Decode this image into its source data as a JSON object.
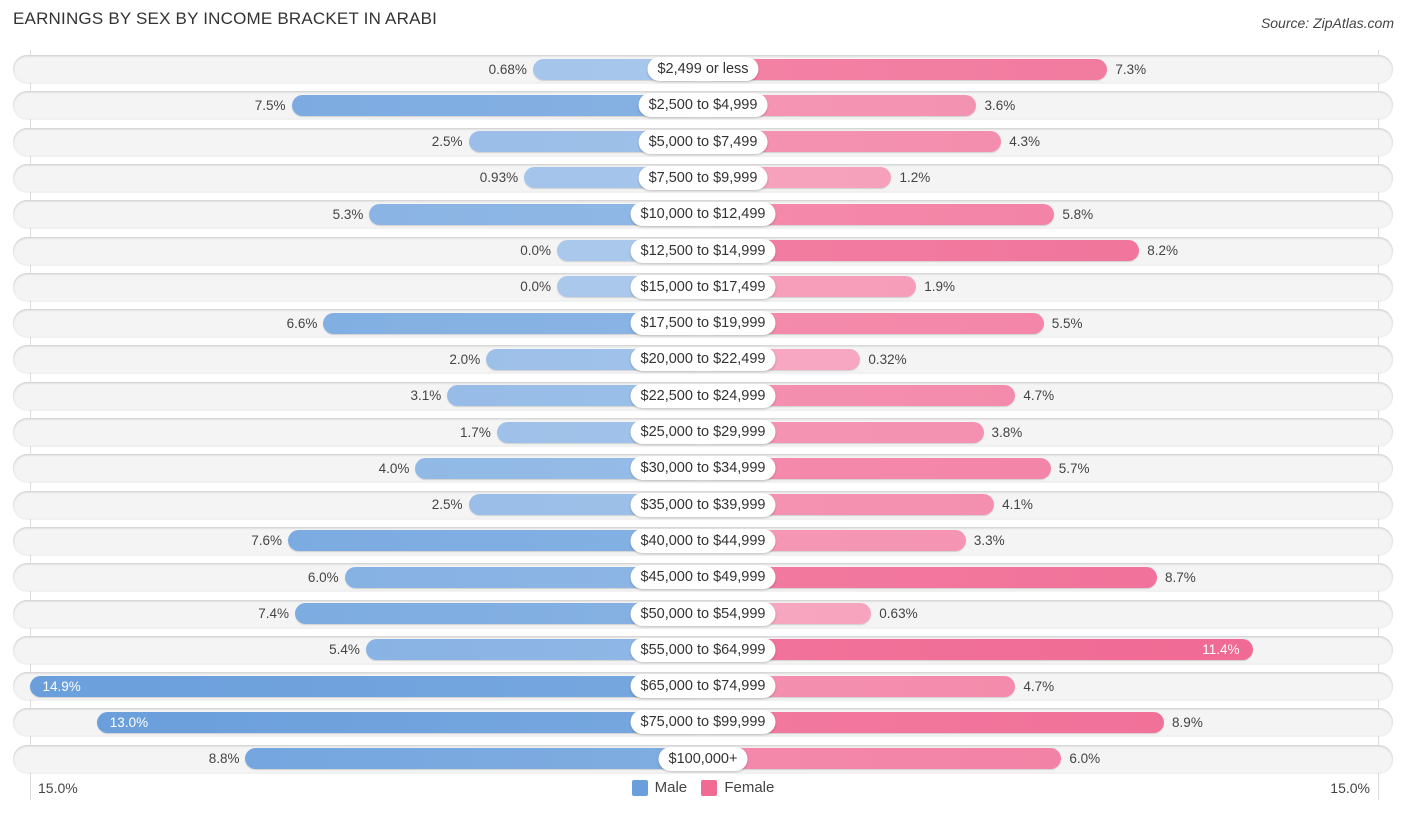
{
  "title": "EARNINGS BY SEX BY INCOME BRACKET IN ARABI",
  "source": "Source: ZipAtlas.com",
  "colors": {
    "male": "#6a9fdc",
    "male_light": "#a9c8ec",
    "female": "#f06a94",
    "female_light": "#f7a9c2"
  },
  "chart_data": {
    "type": "bar",
    "orientation": "horizontal-diverging",
    "title": "EARNINGS BY SEX BY INCOME BRACKET IN ARABI",
    "xlabel": "",
    "ylabel": "",
    "xlim": [
      -15.0,
      15.0
    ],
    "tick_labels": {
      "left": "15.0%",
      "right": "15.0%"
    },
    "legend": {
      "position": "bottom-center",
      "entries": [
        "Male",
        "Female"
      ]
    },
    "categories": [
      "$2,499 or less",
      "$2,500 to $4,999",
      "$5,000 to $7,499",
      "$7,500 to $9,999",
      "$10,000 to $12,499",
      "$12,500 to $14,999",
      "$15,000 to $17,499",
      "$17,500 to $19,999",
      "$20,000 to $22,499",
      "$22,500 to $24,999",
      "$25,000 to $29,999",
      "$30,000 to $34,999",
      "$35,000 to $39,999",
      "$40,000 to $44,999",
      "$45,000 to $49,999",
      "$50,000 to $54,999",
      "$55,000 to $64,999",
      "$65,000 to $74,999",
      "$75,000 to $99,999",
      "$100,000+"
    ],
    "series": [
      {
        "name": "Male",
        "values": [
          0.68,
          7.5,
          2.5,
          0.93,
          5.3,
          0.0,
          0.0,
          6.6,
          2.0,
          3.1,
          1.7,
          4.0,
          2.5,
          7.6,
          6.0,
          7.4,
          5.4,
          14.9,
          13.0,
          8.8
        ],
        "labels": [
          "0.68%",
          "7.5%",
          "2.5%",
          "0.93%",
          "5.3%",
          "0.0%",
          "0.0%",
          "6.6%",
          "2.0%",
          "3.1%",
          "1.7%",
          "4.0%",
          "2.5%",
          "7.6%",
          "6.0%",
          "7.4%",
          "5.4%",
          "14.9%",
          "13.0%",
          "8.8%"
        ]
      },
      {
        "name": "Female",
        "values": [
          7.3,
          3.6,
          4.3,
          1.2,
          5.8,
          8.2,
          1.9,
          5.5,
          0.32,
          4.7,
          3.8,
          5.7,
          4.1,
          3.3,
          8.7,
          0.63,
          11.4,
          4.7,
          8.9,
          6.0
        ],
        "labels": [
          "7.3%",
          "3.6%",
          "4.3%",
          "1.2%",
          "5.8%",
          "8.2%",
          "1.9%",
          "5.5%",
          "0.32%",
          "4.7%",
          "3.8%",
          "5.7%",
          "4.1%",
          "3.3%",
          "8.7%",
          "0.63%",
          "11.4%",
          "4.7%",
          "8.9%",
          "6.0%"
        ]
      }
    ]
  },
  "legend": {
    "male_label": "Male",
    "female_label": "Female"
  },
  "axis": {
    "left_tick": "15.0%",
    "right_tick": "15.0%"
  }
}
